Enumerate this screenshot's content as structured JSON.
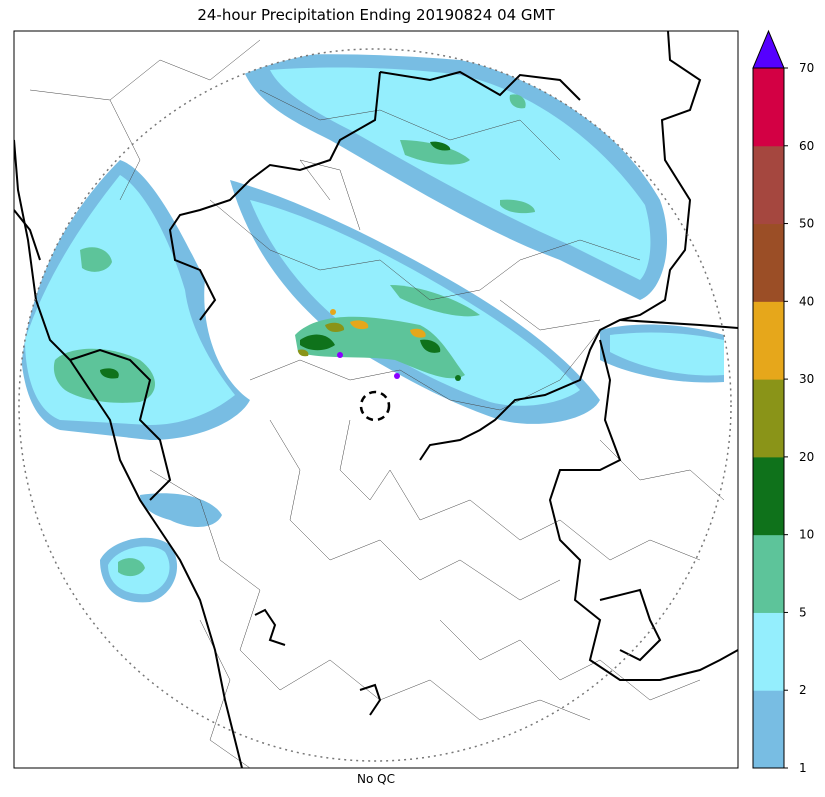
{
  "title": "24-hour Precipitation Ending 20190824 04 GMT",
  "footer_label": "No QC",
  "colorbar": {
    "extend": "max",
    "extend_color": "#5500ff",
    "boundaries": [
      "1",
      "2",
      "5",
      "10",
      "20",
      "30",
      "40",
      "50",
      "60",
      "70"
    ],
    "colors": [
      "#78bde3",
      "#94eefd",
      "#5dc49a",
      "#0f721b",
      "#8a9418",
      "#e6a71b",
      "#9b4e26",
      "#a5473f",
      "#d30044"
    ]
  },
  "map": {
    "range_ring": "dotted",
    "radar_site_marker": "dashed-circle",
    "country_border_color": "#000000",
    "district_border_color": "#444444"
  }
}
